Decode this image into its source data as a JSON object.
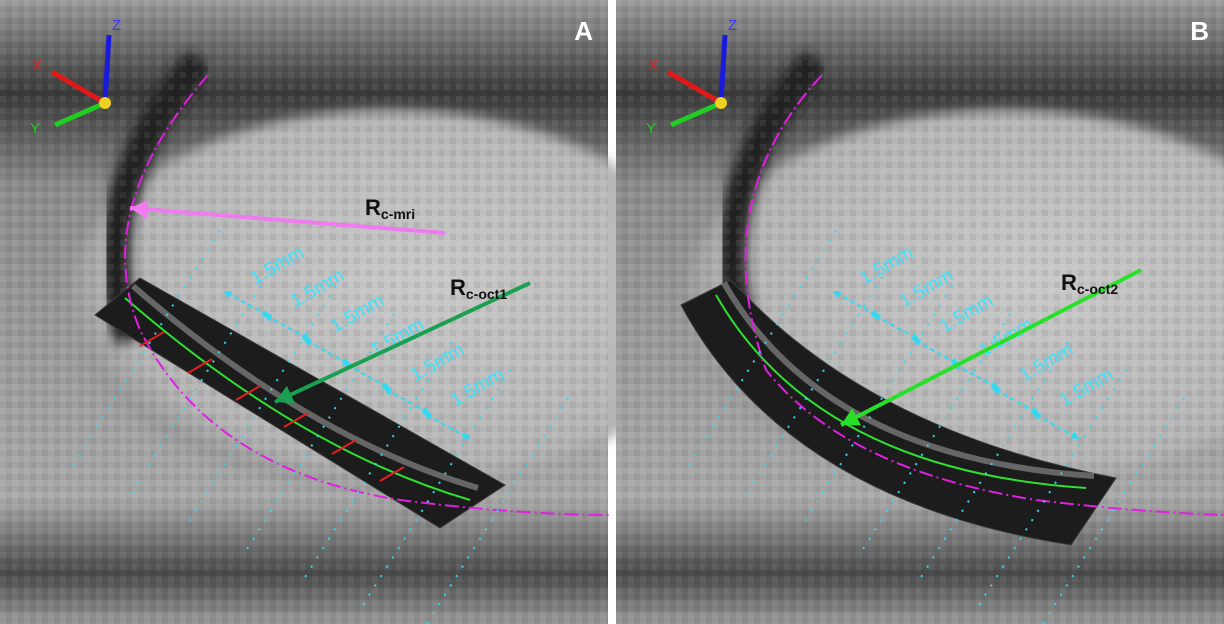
{
  "panels": [
    {
      "label": "A",
      "axes": {
        "x": "X",
        "y": "Y",
        "z": "Z"
      },
      "radius_labels": [
        {
          "main": "R",
          "sub": "c-mri"
        },
        {
          "main": "R",
          "sub": "c-oct1"
        }
      ],
      "measurements": [
        "1.5mm",
        "1.5mm",
        "1.5mm",
        "1.5mm",
        "1.5mm",
        "1.5mm"
      ]
    },
    {
      "label": "B",
      "axes": {
        "x": "X",
        "y": "Y",
        "z": "Z"
      },
      "radius_labels": [
        {
          "main": "R",
          "sub": "c-oct2"
        }
      ],
      "measurements": [
        "1.5mm",
        "1.5mm",
        "1.5mm",
        "1.5mm",
        "1.5mm",
        "1.5mm"
      ]
    }
  ]
}
